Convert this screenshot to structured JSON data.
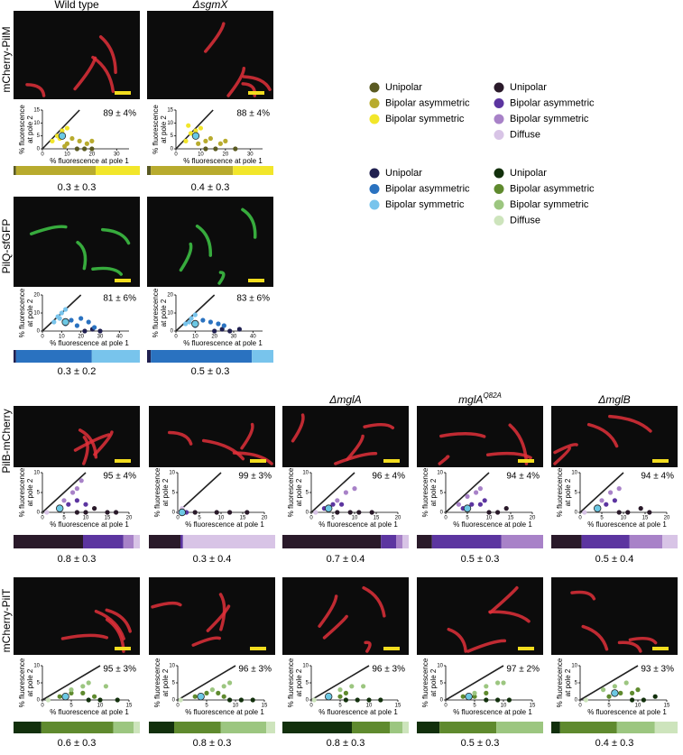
{
  "axis_labels": {
    "y": [
      "% fluorescence",
      "at pole 2"
    ],
    "x": "% fluorescence at pole 1"
  },
  "legends": [
    {
      "items": [
        {
          "label": "Unipolar",
          "color": "#5a5a22"
        },
        {
          "label": "Bipolar asymmetric",
          "color": "#b8ab2e"
        },
        {
          "label": "Bipolar symmetric",
          "color": "#f2e62a"
        }
      ]
    },
    {
      "items": [
        {
          "label": "Unipolar",
          "color": "#2a1a2a"
        },
        {
          "label": "Bipolar asymmetric",
          "color": "#5c35a0"
        },
        {
          "label": "Bipolar symmetric",
          "color": "#a882c8"
        },
        {
          "label": "Diffuse",
          "color": "#d8c4e6"
        }
      ]
    },
    {
      "items": [
        {
          "label": "Unipolar",
          "color": "#202050"
        },
        {
          "label": "Bipolar asymmetric",
          "color": "#2a72c0"
        },
        {
          "label": "Bipolar symmetric",
          "color": "#78c4ec"
        }
      ]
    },
    {
      "items": [
        {
          "label": "Unipolar",
          "color": "#12300c"
        },
        {
          "label": "Bipolar asymmetric",
          "color": "#5f8a2e"
        },
        {
          "label": "Bipolar symmetric",
          "color": "#9cc680"
        },
        {
          "label": "Diffuse",
          "color": "#cde4bc"
        }
      ]
    }
  ],
  "rows": [
    {
      "label": "mCherry-PilM",
      "cell_color": "#e0303a",
      "legend": 0,
      "xlim": [
        0,
        35
      ],
      "xticks": [
        0,
        10,
        20,
        30
      ],
      "ylim": [
        0,
        15
      ],
      "yticks": [
        0,
        5,
        10,
        15
      ],
      "panels": [
        {
          "header": "Wild type",
          "percent": "89 ± 4%",
          "fractions": [
            2,
            63,
            35
          ],
          "ratio": "0.3 ± 0.3",
          "mean": [
            8,
            5
          ],
          "series": [
            {
              "x": [
                14,
                17,
                20
              ],
              "y": [
                0,
                0,
                0
              ]
            },
            {
              "x": [
                10,
                12,
                15,
                18,
                20,
                9
              ],
              "y": [
                2,
                4,
                3,
                2,
                3,
                1
              ]
            },
            {
              "x": [
                4,
                6,
                8,
                10,
                7
              ],
              "y": [
                3,
                5,
                7,
                8,
                4
              ]
            }
          ]
        },
        {
          "header": "ΔsgmX",
          "percent": "88 ± 4%",
          "fractions": [
            3,
            65,
            32
          ],
          "ratio": "0.4 ± 0.3",
          "mean": [
            8,
            5
          ],
          "series": [
            {
              "x": [
                12,
                16,
                24
              ],
              "y": [
                0,
                0,
                0
              ]
            },
            {
              "x": [
                9,
                12,
                14,
                18,
                20
              ],
              "y": [
                2,
                3,
                4,
                2,
                3
              ]
            },
            {
              "x": [
                4,
                6,
                8,
                5,
                10
              ],
              "y": [
                3,
                6,
                7,
                9,
                8
              ]
            }
          ]
        }
      ]
    },
    {
      "label": "PilQ-sfGFP",
      "cell_color": "#3fc846",
      "legend": 2,
      "xlim": [
        0,
        45
      ],
      "xticks": [
        0,
        10,
        20,
        30,
        40
      ],
      "ylim": [
        0,
        20
      ],
      "yticks": [
        0,
        10,
        20
      ],
      "panels": [
        {
          "percent": "81 ± 6%",
          "fractions": [
            2,
            60,
            38
          ],
          "ratio": "0.3 ± 0.2",
          "mean": [
            12,
            5
          ],
          "series": [
            {
              "x": [
                22,
                26,
                30
              ],
              "y": [
                0,
                1,
                0
              ]
            },
            {
              "x": [
                12,
                15,
                18,
                20,
                24,
                27
              ],
              "y": [
                4,
                6,
                3,
                7,
                5,
                2
              ]
            },
            {
              "x": [
                6,
                8,
                10,
                12,
                9
              ],
              "y": [
                5,
                8,
                10,
                12,
                7
              ]
            }
          ]
        },
        {
          "percent": "83 ± 6%",
          "fractions": [
            3,
            80,
            17
          ],
          "ratio": "0.5 ± 0.3",
          "mean": [
            10,
            4
          ],
          "series": [
            {
              "x": [
                20,
                24,
                28,
                33
              ],
              "y": [
                0,
                1,
                0,
                1
              ]
            },
            {
              "x": [
                10,
                14,
                18,
                22,
                25
              ],
              "y": [
                3,
                6,
                5,
                4,
                3
              ]
            },
            {
              "x": [
                5,
                8,
                10,
                7
              ],
              "y": [
                4,
                7,
                9,
                5
              ]
            }
          ]
        }
      ]
    },
    {
      "label": "PilB-mCherry",
      "cell_color": "#e0303a",
      "legend": 1,
      "xlim": [
        0,
        20
      ],
      "xticks": [
        0,
        5,
        10,
        15,
        20
      ],
      "ylim": [
        0,
        10
      ],
      "yticks": [
        0,
        5,
        10
      ],
      "panels": [
        {
          "percent": "95 ± 4%",
          "fractions": [
            55,
            32,
            8,
            5
          ],
          "ratio": "0.8 ± 0.3",
          "mean": [
            4,
            1
          ],
          "series": [
            {
              "x": [
                8,
                10,
                12,
                15,
                17
              ],
              "y": [
                0,
                0,
                1,
                0,
                0
              ]
            },
            {
              "x": [
                4,
                6,
                8,
                10
              ],
              "y": [
                1,
                2,
                3,
                2
              ]
            },
            {
              "x": [
                5,
                7,
                8,
                9
              ],
              "y": [
                3,
                5,
                6,
                8
              ]
            },
            {
              "x": [
                1
              ],
              "y": [
                0
              ]
            }
          ]
        },
        {
          "percent": "99 ± 3%",
          "fractions": [
            25,
            2,
            0,
            73
          ],
          "ratio": "0.3 ± 0.4",
          "mean": [
            1,
            0
          ],
          "series": [
            {
              "x": [
                4,
                9,
                12,
                16
              ],
              "y": [
                0,
                0,
                0,
                0
              ]
            },
            {
              "x": [
                2
              ],
              "y": [
                0
              ]
            },
            {
              "x": [],
              "y": []
            },
            {
              "x": [
                0.5,
                1
              ],
              "y": [
                0,
                1
              ]
            }
          ]
        },
        {
          "header": "ΔmglA",
          "percent": "96 ± 4%",
          "fractions": [
            78,
            12,
            5,
            5
          ],
          "ratio": "0.7 ± 0.4",
          "mean": [
            4,
            1
          ],
          "series": [
            {
              "x": [
                6,
                9,
                11,
                14
              ],
              "y": [
                0,
                0,
                0,
                0
              ]
            },
            {
              "x": [
                3,
                5,
                7
              ],
              "y": [
                1,
                2,
                2
              ]
            },
            {
              "x": [
                6,
                8,
                10
              ],
              "y": [
                3,
                5,
                6
              ]
            },
            {
              "x": [
                1
              ],
              "y": [
                0
              ]
            }
          ]
        },
        {
          "header": "mglA",
          "header_sup": "Q82A",
          "percent": "94 ± 4%",
          "fractions": [
            12,
            55,
            33,
            0
          ],
          "ratio": "0.5 ± 0.3",
          "mean": [
            5,
            1
          ],
          "series": [
            {
              "x": [
                10,
                12,
                14
              ],
              "y": [
                0,
                0,
                1
              ]
            },
            {
              "x": [
                4,
                6,
                8,
                9
              ],
              "y": [
                1,
                2,
                2,
                3
              ]
            },
            {
              "x": [
                3,
                5,
                7,
                8
              ],
              "y": [
                2,
                4,
                5,
                6
              ]
            },
            {
              "x": [],
              "y": []
            }
          ]
        },
        {
          "header": "ΔmglB",
          "percent": "94 ± 4%",
          "fractions": [
            24,
            38,
            26,
            12
          ],
          "ratio": "0.5 ± 0.4",
          "mean": [
            4,
            1
          ],
          "series": [
            {
              "x": [
                9,
                11,
                14,
                16
              ],
              "y": [
                0,
                0,
                1,
                0
              ]
            },
            {
              "x": [
                4,
                6,
                8
              ],
              "y": [
                1,
                2,
                3
              ]
            },
            {
              "x": [
                5,
                7,
                9
              ],
              "y": [
                3,
                5,
                6
              ]
            },
            {
              "x": [
                1
              ],
              "y": [
                0
              ]
            }
          ]
        }
      ]
    },
    {
      "label": "mCherry-PilT",
      "cell_color": "#e0303a",
      "legend": 3,
      "xlim": [
        0,
        15
      ],
      "xticks": [
        0,
        5,
        10,
        15
      ],
      "ylim": [
        0,
        10
      ],
      "yticks": [
        0,
        5,
        10
      ],
      "panels": [
        {
          "percent": "95 ± 3%",
          "fractions": [
            22,
            57,
            16,
            5
          ],
          "ratio": "0.6 ± 0.3",
          "mean": [
            4,
            1
          ],
          "series": [
            {
              "x": [
                8,
                10,
                13
              ],
              "y": [
                0,
                0,
                0
              ]
            },
            {
              "x": [
                3,
                5,
                7,
                9
              ],
              "y": [
                1,
                2,
                2,
                1
              ]
            },
            {
              "x": [
                5,
                7,
                8,
                11
              ],
              "y": [
                3,
                4,
                5,
                4
              ]
            },
            {
              "x": [
                1
              ],
              "y": [
                0
              ]
            }
          ]
        },
        {
          "percent": "96 ± 3%",
          "fractions": [
            20,
            37,
            36,
            7
          ],
          "ratio": "0.8 ± 0.3",
          "mean": [
            4,
            1
          ],
          "series": [
            {
              "x": [
                9,
                11,
                13
              ],
              "y": [
                0,
                0,
                0
              ]
            },
            {
              "x": [
                3,
                5,
                7,
                8
              ],
              "y": [
                1,
                2,
                2,
                1
              ]
            },
            {
              "x": [
                6,
                8,
                9
              ],
              "y": [
                3,
                4,
                5
              ]
            },
            {
              "x": [
                0.5
              ],
              "y": [
                0
              ]
            }
          ]
        },
        {
          "percent": "96 ± 3%",
          "fractions": [
            55,
            30,
            10,
            5
          ],
          "ratio": "0.8 ± 0.3",
          "mean": [
            3,
            1
          ],
          "series": [
            {
              "x": [
                6,
                8,
                10,
                12
              ],
              "y": [
                0,
                0,
                0,
                0
              ]
            },
            {
              "x": [
                3,
                5,
                6
              ],
              "y": [
                1,
                1,
                2
              ]
            },
            {
              "x": [
                5,
                7,
                9
              ],
              "y": [
                3,
                4,
                4
              ]
            },
            {
              "x": [
                0.5
              ],
              "y": [
                0
              ]
            }
          ]
        },
        {
          "percent": "97 ± 2%",
          "fractions": [
            18,
            45,
            37,
            0
          ],
          "ratio": "0.5 ± 0.3",
          "mean": [
            4,
            1
          ],
          "series": [
            {
              "x": [
                7,
                9,
                11
              ],
              "y": [
                0,
                0,
                0
              ]
            },
            {
              "x": [
                3,
                5,
                7
              ],
              "y": [
                1,
                1,
                2
              ]
            },
            {
              "x": [
                5,
                7,
                9,
                10
              ],
              "y": [
                2,
                4,
                5,
                5
              ]
            },
            {
              "x": [],
              "y": []
            }
          ]
        },
        {
          "percent": "93 ± 3%",
          "fractions": [
            7,
            45,
            30,
            18
          ],
          "ratio": "0.4 ± 0.3",
          "mean": [
            6,
            2
          ],
          "series": [
            {
              "x": [
                9,
                11,
                13
              ],
              "y": [
                0,
                0,
                1
              ]
            },
            {
              "x": [
                5,
                7,
                9,
                10
              ],
              "y": [
                1,
                2,
                2,
                3
              ]
            },
            {
              "x": [
                4,
                6,
                8
              ],
              "y": [
                3,
                4,
                5
              ]
            },
            {
              "x": [
                1
              ],
              "y": [
                0
              ]
            }
          ]
        }
      ]
    }
  ]
}
